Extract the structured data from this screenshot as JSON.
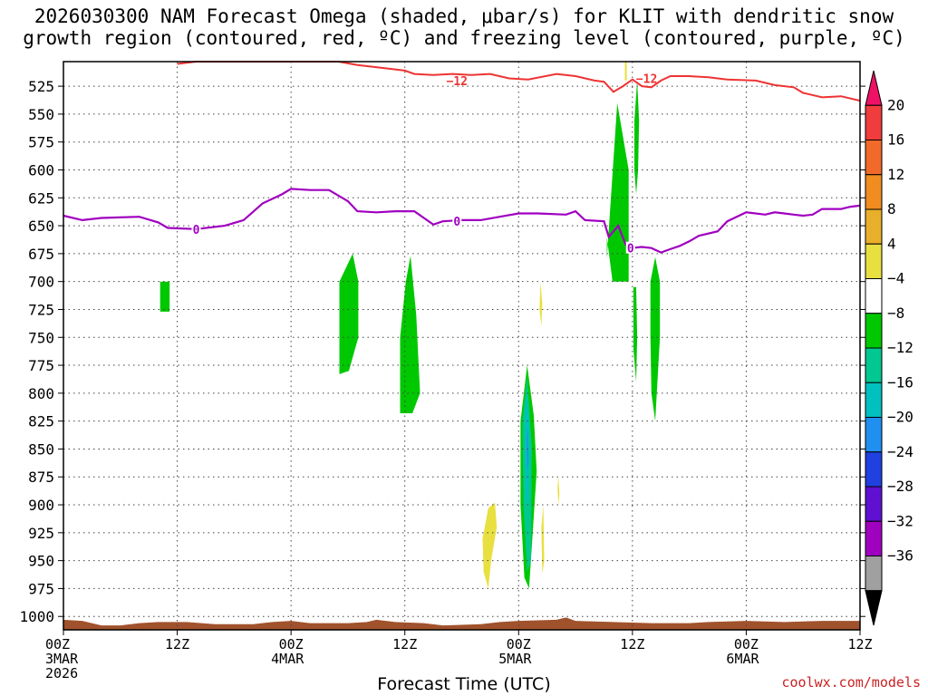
{
  "title_line1": "2026030300 NAM Forecast Omega (shaded, μbar/s) for KLIT with dendritic snow",
  "title_line2": "growth region (contoured, red, ºC) and freezing level (contoured, purple, ºC)",
  "credit": "coolwx.com/models",
  "chart_data": {
    "type": "time-height cross section",
    "xlabel": "Forecast Time (UTC)",
    "x_unit": "hours from 2026-03-03 00Z",
    "xlim": [
      0,
      84
    ],
    "x_ticks": [
      {
        "hour": 0,
        "lines": [
          "00Z",
          "3MAR",
          "2026"
        ]
      },
      {
        "hour": 12,
        "lines": [
          "12Z"
        ]
      },
      {
        "hour": 24,
        "lines": [
          "00Z",
          "4MAR"
        ]
      },
      {
        "hour": 36,
        "lines": [
          "12Z"
        ]
      },
      {
        "hour": 48,
        "lines": [
          "00Z",
          "5MAR"
        ]
      },
      {
        "hour": 60,
        "lines": [
          "12Z"
        ]
      },
      {
        "hour": 72,
        "lines": [
          "00Z",
          "6MAR"
        ]
      },
      {
        "hour": 84,
        "lines": [
          "12Z"
        ]
      }
    ],
    "y_unit": "hPa",
    "ylim": [
      1012,
      503
    ],
    "y_ticks": [
      525,
      550,
      575,
      600,
      625,
      650,
      675,
      700,
      725,
      750,
      775,
      800,
      825,
      850,
      875,
      900,
      925,
      950,
      975,
      1000
    ],
    "grid": true,
    "colorbar": {
      "labels": [
        "20",
        "16",
        "12",
        "8",
        "4",
        "−4",
        "−8",
        "−12",
        "−16",
        "−20",
        "−24",
        "−28",
        "−32",
        "−36"
      ],
      "colors": [
        "#ee1166",
        "#f03c3c",
        "#f26a2a",
        "#f08c20",
        "#e8b02a",
        "#e8e040",
        "#ffffff",
        "#00c800",
        "#00c890",
        "#00c0c0",
        "#2090f0",
        "#2040e0",
        "#6010d0",
        "#a000c0",
        "#a0a0a0",
        "#000000"
      ]
    },
    "freezing_level": {
      "label": "0",
      "color": "#a000c0",
      "points": [
        [
          0,
          641
        ],
        [
          2,
          645
        ],
        [
          4,
          643
        ],
        [
          8,
          642
        ],
        [
          10,
          647
        ],
        [
          11,
          652
        ],
        [
          14,
          653
        ],
        [
          17,
          650
        ],
        [
          19,
          645
        ],
        [
          21,
          630
        ],
        [
          23,
          622
        ],
        [
          24,
          617
        ],
        [
          26,
          618
        ],
        [
          28,
          618
        ],
        [
          30,
          628
        ],
        [
          31,
          637
        ],
        [
          33,
          638
        ],
        [
          35,
          637
        ],
        [
          37,
          637
        ],
        [
          39,
          649
        ],
        [
          40,
          646
        ],
        [
          42,
          645
        ],
        [
          44,
          645
        ],
        [
          46,
          642
        ],
        [
          48,
          639
        ],
        [
          50,
          639
        ],
        [
          53,
          640
        ],
        [
          54,
          637
        ],
        [
          55,
          645
        ],
        [
          57,
          646
        ],
        [
          57.5,
          660
        ],
        [
          58.5,
          650
        ],
        [
          59.3,
          667
        ],
        [
          59.8,
          670
        ],
        [
          61,
          669
        ],
        [
          62,
          670
        ],
        [
          63,
          674
        ],
        [
          64,
          671
        ],
        [
          65,
          668
        ],
        [
          66,
          664
        ],
        [
          67,
          659
        ],
        [
          69,
          655
        ],
        [
          70,
          646
        ],
        [
          72,
          638
        ],
        [
          74,
          640
        ],
        [
          75,
          638
        ],
        [
          76,
          639
        ],
        [
          77,
          640
        ],
        [
          78,
          641
        ],
        [
          79,
          640
        ],
        [
          80,
          635
        ],
        [
          82,
          635
        ],
        [
          83,
          633
        ],
        [
          84,
          632
        ]
      ]
    },
    "dendritic_contour": {
      "label": "−12",
      "color": "#ee3333",
      "points": [
        [
          12,
          505
        ],
        [
          14,
          503
        ],
        [
          29,
          503
        ],
        [
          31,
          506
        ],
        [
          34,
          509
        ],
        [
          36,
          511
        ],
        [
          37,
          514
        ],
        [
          39,
          515
        ],
        [
          41,
          514
        ],
        [
          43,
          515
        ],
        [
          45,
          514
        ],
        [
          47,
          518
        ],
        [
          49,
          519
        ],
        [
          52,
          514
        ],
        [
          54,
          516
        ],
        [
          56,
          520
        ],
        [
          57,
          521
        ],
        [
          58,
          530
        ],
        [
          59,
          525
        ],
        [
          60,
          519
        ],
        [
          61,
          525
        ],
        [
          62,
          526
        ],
        [
          63,
          520
        ],
        [
          64,
          516
        ],
        [
          66,
          516
        ],
        [
          68,
          517
        ],
        [
          70,
          519
        ],
        [
          73,
          520
        ],
        [
          75,
          524
        ],
        [
          77,
          526
        ],
        [
          78,
          531
        ],
        [
          80,
          535
        ],
        [
          82,
          534
        ],
        [
          84,
          538
        ]
      ]
    },
    "omega_regions": [
      {
        "value_bin": "-4 to -8",
        "color": "#00c800",
        "points": [
          [
            10.2,
            700
          ],
          [
            11.2,
            700
          ],
          [
            11.2,
            727
          ],
          [
            10.2,
            727
          ]
        ]
      },
      {
        "value_bin": "-4 to -8",
        "color": "#00c800",
        "points": [
          [
            29.1,
            700
          ],
          [
            30.5,
            675
          ],
          [
            31.1,
            700
          ],
          [
            31.1,
            750
          ],
          [
            30.1,
            780
          ],
          [
            29.1,
            783
          ]
        ]
      },
      {
        "value_bin": "-4 to -8",
        "color": "#00c800",
        "points": [
          [
            35.5,
            750
          ],
          [
            36.1,
            700
          ],
          [
            36.6,
            677
          ],
          [
            37.2,
            730
          ],
          [
            37.6,
            800
          ],
          [
            36.8,
            818
          ],
          [
            35.5,
            818
          ]
        ]
      },
      {
        "value_bin": "-4 to -8",
        "color": "#00c800",
        "points": [
          [
            57.3,
            680
          ],
          [
            58.4,
            540
          ],
          [
            59.6,
            600
          ],
          [
            59.6,
            700
          ],
          [
            57.9,
            700
          ],
          [
            57.3,
            660
          ]
        ]
      },
      {
        "value_bin": "-4 to -8",
        "color": "#00c800",
        "points": [
          [
            60.2,
            556
          ],
          [
            60.5,
            520
          ],
          [
            60.7,
            556
          ],
          [
            60.6,
            600
          ],
          [
            60.4,
            622
          ],
          [
            60.2,
            600
          ]
        ]
      },
      {
        "value_bin": "-4 to -8",
        "color": "#00c800",
        "points": [
          [
            60.1,
            705
          ],
          [
            60.4,
            705
          ],
          [
            60.5,
            750
          ],
          [
            60.4,
            790
          ],
          [
            60.1,
            760
          ]
        ]
      },
      {
        "value_bin": "-4 to -8",
        "color": "#00c800",
        "points": [
          [
            61.9,
            700
          ],
          [
            62.4,
            678
          ],
          [
            62.9,
            700
          ],
          [
            62.9,
            750
          ],
          [
            62.4,
            825
          ],
          [
            62,
            800
          ],
          [
            61.9,
            750
          ]
        ]
      },
      {
        "value_bin": "-4 to -8",
        "color": "#00c800",
        "points": [
          [
            48.2,
            825
          ],
          [
            48.9,
            775
          ],
          [
            49.6,
            820
          ],
          [
            49.9,
            870
          ],
          [
            49.1,
            975
          ],
          [
            48.6,
            965
          ],
          [
            48.2,
            900
          ]
        ]
      },
      {
        "value_bin": "-8 to -12",
        "color": "#00c890",
        "points": [
          [
            48.4,
            825
          ],
          [
            48.9,
            785
          ],
          [
            49.4,
            850
          ],
          [
            49.3,
            950
          ],
          [
            48.9,
            960
          ],
          [
            48.5,
            900
          ]
        ]
      },
      {
        "value_bin": "-12 to -16",
        "color": "#00c0c0",
        "points": [
          [
            48.7,
            820
          ],
          [
            48.9,
            800
          ],
          [
            49.1,
            840
          ],
          [
            49.0,
            900
          ],
          [
            48.8,
            895
          ]
        ]
      },
      {
        "value_bin": "-16 to -20",
        "color": "#2090f0",
        "points": [
          [
            48.85,
            840
          ],
          [
            48.95,
            830
          ],
          [
            49.05,
            860
          ],
          [
            48.9,
            870
          ]
        ]
      },
      {
        "value_bin": "4 to 8",
        "color": "#e8e040",
        "points": [
          [
            44.2,
            930
          ],
          [
            44.8,
            903
          ],
          [
            45.5,
            898
          ],
          [
            45.7,
            920
          ],
          [
            45.1,
            950
          ],
          [
            44.8,
            975
          ],
          [
            44.3,
            960
          ]
        ]
      },
      {
        "value_bin": "4 to 8",
        "color": "#e8e040",
        "points": [
          [
            50.3,
            700
          ],
          [
            50.5,
            720
          ],
          [
            50.4,
            740
          ],
          [
            50.2,
            725
          ]
        ]
      },
      {
        "value_bin": "4 to 8",
        "color": "#e8e040",
        "points": [
          [
            52.1,
            885
          ],
          [
            52.2,
            875
          ],
          [
            52.3,
            890
          ],
          [
            52.2,
            900
          ]
        ]
      },
      {
        "value_bin": "4 to 8",
        "color": "#e8e040",
        "points": [
          [
            50.4,
            920
          ],
          [
            50.6,
            900
          ],
          [
            50.7,
            950
          ],
          [
            50.5,
            962
          ]
        ]
      },
      {
        "value_bin": "4 to 8",
        "color": "#e8e040",
        "points": [
          [
            59.2,
            503
          ],
          [
            59.4,
            503
          ],
          [
            59.4,
            520
          ],
          [
            59.2,
            520
          ]
        ]
      }
    ],
    "terrain": {
      "color": "#a0522d",
      "surface": [
        [
          0,
          1003
        ],
        [
          2,
          1004
        ],
        [
          4,
          1008
        ],
        [
          6,
          1008
        ],
        [
          8,
          1006
        ],
        [
          10,
          1005
        ],
        [
          13,
          1005
        ],
        [
          16,
          1007
        ],
        [
          20,
          1007
        ],
        [
          22,
          1005
        ],
        [
          24,
          1004
        ],
        [
          26,
          1006
        ],
        [
          30,
          1006
        ],
        [
          32,
          1005
        ],
        [
          33,
          1003
        ],
        [
          35,
          1005
        ],
        [
          38,
          1006
        ],
        [
          40,
          1008
        ],
        [
          44,
          1007
        ],
        [
          46,
          1005
        ],
        [
          48,
          1004
        ],
        [
          52,
          1003
        ],
        [
          53,
          1001
        ],
        [
          54,
          1004
        ],
        [
          58,
          1005
        ],
        [
          62,
          1006
        ],
        [
          66,
          1006
        ],
        [
          68,
          1005
        ],
        [
          72,
          1004
        ],
        [
          76,
          1005
        ],
        [
          80,
          1004
        ],
        [
          84,
          1004
        ]
      ]
    }
  }
}
